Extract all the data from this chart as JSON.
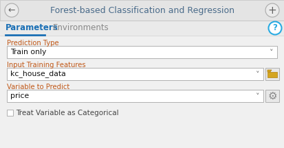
{
  "title": "Forest-based Classification and Regression",
  "tab1": "Parameters",
  "tab2": "Environments",
  "label1": "Prediction Type",
  "dropdown1": "Train only",
  "label2": "Input Training Features",
  "dropdown2": "kc_house_data",
  "label3": "Variable to Predict",
  "dropdown3": "price",
  "checkbox_label": "Treat Variable as Categorical",
  "bg_outer": "#e2e2e2",
  "bg_header": "#e8e8e8",
  "bg_content": "#f0f0f0",
  "dropdown_bg": "#ffffff",
  "title_color": "#4a6b8a",
  "label_color": "#c05818",
  "tab_active_color": "#1a6fb5",
  "tab_text_active": "#1a6fb5",
  "tab_text_inactive": "#888888",
  "border_color": "#b0b0b0",
  "help_circle_color": "#29abe2",
  "folder_color": "#d4a520",
  "gear_color": "#888888",
  "nav_circle_border": "#aaaaaa",
  "nav_symbol_color": "#606060",
  "dropdown_arrow_color": "#606060",
  "checkbox_text_color": "#444444",
  "figwidth": 4.13,
  "figheight": 2.16,
  "dpi": 100
}
